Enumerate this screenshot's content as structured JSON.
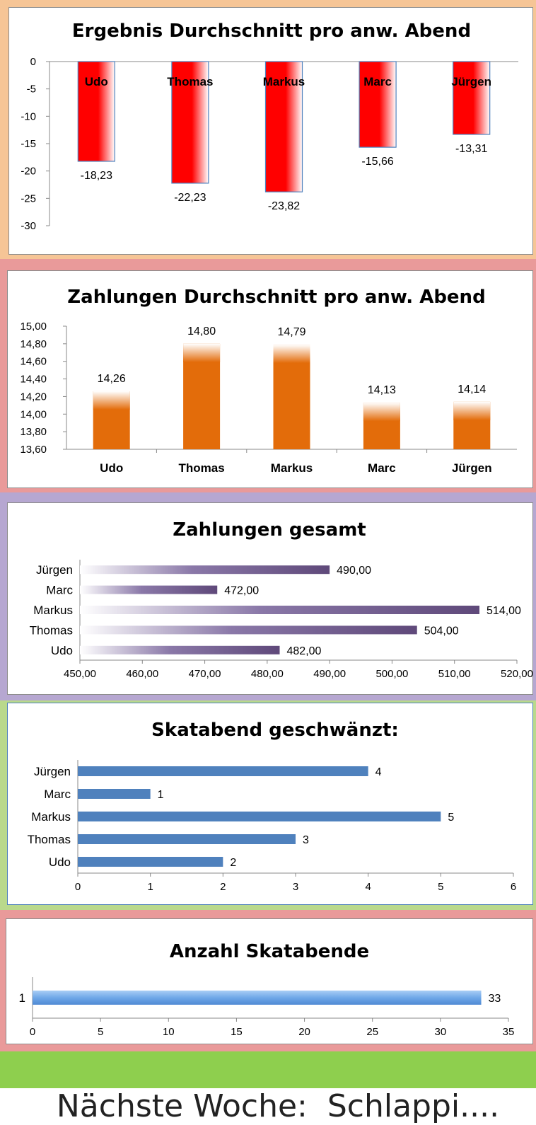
{
  "charts": [
    {
      "type": "bar",
      "title": "Ergebnis Durchschnitt pro anw. Abend",
      "categories": [
        "Udo",
        "Thomas",
        "Markus",
        "Marc",
        "Jürgen"
      ],
      "values": [
        -18.23,
        -22.23,
        -23.82,
        -15.66,
        -13.31
      ],
      "value_labels": [
        "-18,23",
        "-22,23",
        "-23,82",
        "-15,66",
        "-13,31"
      ],
      "ylim": [
        -30,
        0
      ],
      "yticks": [
        "0",
        "-5",
        "-10",
        "-15",
        "-20",
        "-25",
        "-30"
      ],
      "xlabel": "",
      "ylabel": "",
      "grid": false,
      "bar_color": "#ff0000"
    },
    {
      "type": "bar",
      "title": "Zahlungen Durchschnitt pro anw. Abend",
      "categories": [
        "Udo",
        "Thomas",
        "Markus",
        "Marc",
        "Jürgen"
      ],
      "values": [
        14.26,
        14.8,
        14.79,
        14.13,
        14.14
      ],
      "value_labels": [
        "14,26",
        "14,80",
        "14,79",
        "14,13",
        "14,14"
      ],
      "ylim": [
        13.6,
        15.0
      ],
      "yticks": [
        "13,60",
        "13,80",
        "14,00",
        "14,20",
        "14,40",
        "14,60",
        "14,80",
        "15,00"
      ],
      "xlabel": "",
      "ylabel": "",
      "grid": false,
      "bar_color": "#e36c0a"
    },
    {
      "type": "bar",
      "orientation": "horizontal",
      "title": "Zahlungen gesamt",
      "categories": [
        "Udo",
        "Thomas",
        "Markus",
        "Marc",
        "Jürgen"
      ],
      "values": [
        482,
        504,
        514,
        472,
        490
      ],
      "value_labels": [
        "482,00",
        "504,00",
        "514,00",
        "472,00",
        "490,00"
      ],
      "xlim": [
        450,
        520
      ],
      "xticks": [
        "450,00",
        "460,00",
        "470,00",
        "480,00",
        "490,00",
        "500,00",
        "510,00",
        "520,00"
      ],
      "xlabel": "",
      "ylabel": "",
      "grid": false,
      "bar_color": "#5f497a"
    },
    {
      "type": "bar",
      "orientation": "horizontal",
      "title": "Skatabend geschwänzt:",
      "categories": [
        "Udo",
        "Thomas",
        "Markus",
        "Marc",
        "Jürgen"
      ],
      "values": [
        2,
        3,
        5,
        1,
        4
      ],
      "value_labels": [
        "2",
        "3",
        "5",
        "1",
        "4"
      ],
      "xlim": [
        0,
        6
      ],
      "xticks": [
        "0",
        "1",
        "2",
        "3",
        "4",
        "5",
        "6"
      ],
      "xlabel": "",
      "ylabel": "",
      "grid": false,
      "bar_color": "#4f81bd"
    },
    {
      "type": "bar",
      "orientation": "horizontal",
      "title": "Anzahl Skatabende",
      "categories": [
        "1"
      ],
      "values": [
        33
      ],
      "value_labels": [
        "33"
      ],
      "xlim": [
        0,
        35
      ],
      "xticks": [
        "0",
        "5",
        "10",
        "15",
        "20",
        "25",
        "30",
        "35"
      ],
      "xlabel": "",
      "ylabel": "",
      "grid": false,
      "bar_color": "#6fa8e8"
    }
  ],
  "footer": {
    "text": "Nächste Woche:  Schlappi...."
  },
  "colors": {
    "band1": "#f6c596",
    "band2": "#e99a9a",
    "band3": "#b6a7d1",
    "band4": "#b9d98c",
    "band5": "#e99a9a",
    "footer": "#8ecf4e"
  }
}
